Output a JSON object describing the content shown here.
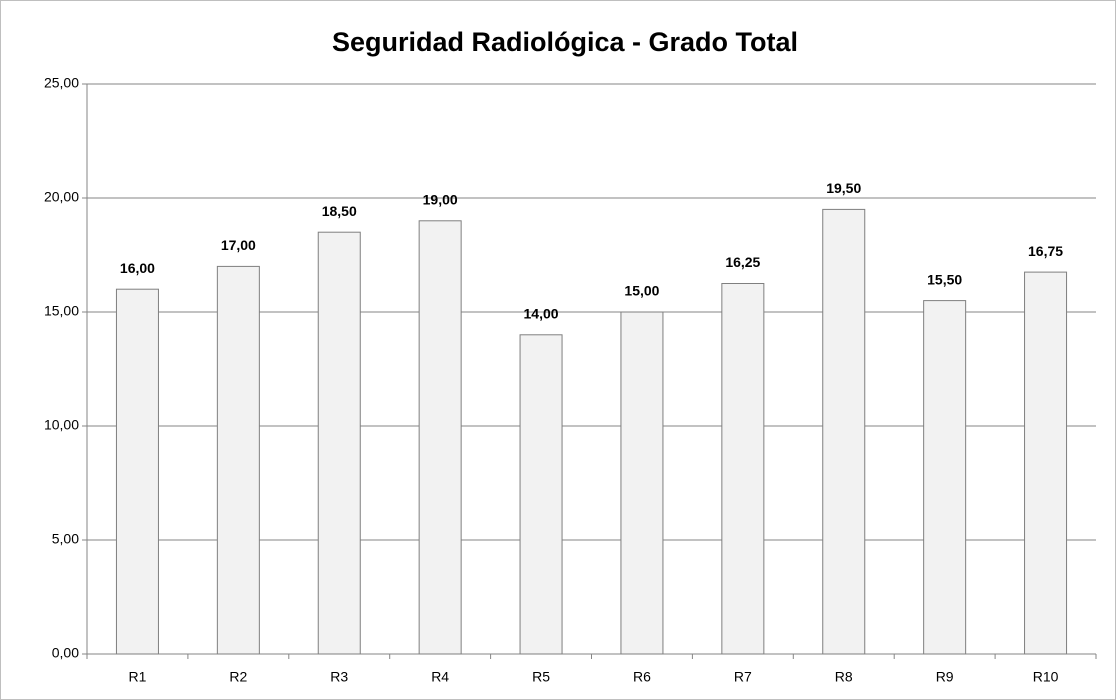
{
  "chart_data": {
    "type": "bar",
    "title": "Seguridad Radiológica - Grado Total",
    "categories": [
      "R1",
      "R2",
      "R3",
      "R4",
      "R5",
      "R6",
      "R7",
      "R8",
      "R9",
      "R10"
    ],
    "values": [
      16,
      17,
      18.5,
      19,
      14,
      15,
      16.25,
      19.5,
      15.5,
      16.75
    ],
    "value_labels": [
      "16,00",
      "17,00",
      "18,50",
      "19,00",
      "14,00",
      "15,00",
      "16,25",
      "19,50",
      "15,50",
      "16,75"
    ],
    "color": "#f2f2f2",
    "ylim": [
      0,
      25
    ],
    "yticks": [
      {
        "value": 0,
        "label": "0,00"
      },
      {
        "value": 5,
        "label": "5,00"
      },
      {
        "value": 10,
        "label": "10,00"
      },
      {
        "value": 15,
        "label": "15,00"
      },
      {
        "value": 20,
        "label": "20,00"
      },
      {
        "value": 25,
        "label": "25,00"
      }
    ],
    "grid": true
  }
}
